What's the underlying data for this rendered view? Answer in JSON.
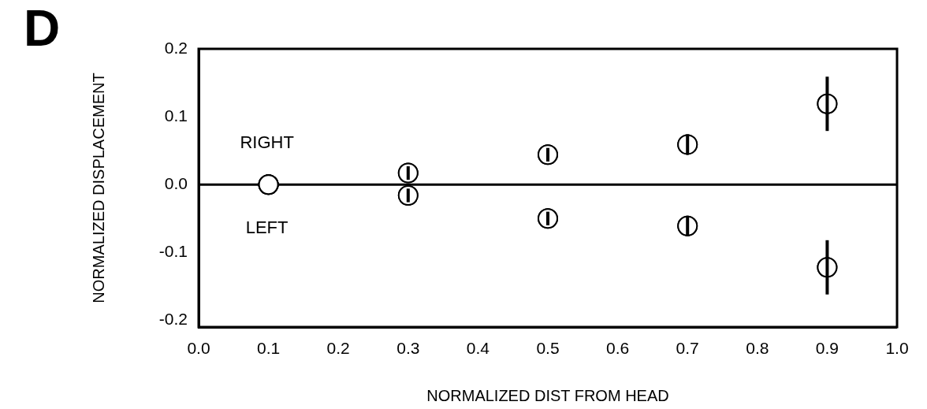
{
  "chart_data": {
    "type": "scatter",
    "title": "D",
    "xlabel": "NORMALIZED DIST FROM HEAD",
    "ylabel": "NORMALIZED DISPLACEMENT",
    "x": [
      0.1,
      0.3,
      0.5,
      0.7,
      0.9
    ],
    "series": [
      {
        "name": "RIGHT",
        "color": "#000000",
        "values": [
          0,
          0.017,
          0.044,
          0.059,
          0.119
        ],
        "errors": [
          null,
          0.01,
          0.01,
          0.015,
          0.04
        ]
      },
      {
        "name": "LEFT",
        "color": "#000000",
        "values": [
          0,
          -0.016,
          -0.05,
          -0.061,
          -0.122
        ],
        "errors": [
          null,
          0.01,
          0.01,
          0.015,
          0.04
        ]
      }
    ],
    "xlim": [
      0,
      1
    ],
    "xticks": [
      {
        "value": 0,
        "label": "0.0"
      },
      {
        "value": 0.1,
        "label": "0.1"
      },
      {
        "value": 0.2,
        "label": "0.2"
      },
      {
        "value": 0.3,
        "label": "0.3"
      },
      {
        "value": 0.4,
        "label": "0.4"
      },
      {
        "value": 0.5,
        "label": "0.5"
      },
      {
        "value": 0.6,
        "label": "0.6"
      },
      {
        "value": 0.7,
        "label": "0.7"
      },
      {
        "value": 0.8,
        "label": "0.8"
      },
      {
        "value": 0.9,
        "label": "0.9"
      },
      {
        "value": 1,
        "label": "1.0"
      }
    ],
    "ylim": [
      -0.21,
      0.2
    ],
    "yticks": [
      {
        "value": -0.2,
        "label": "-0.2"
      },
      {
        "value": -0.1,
        "label": "-0.1"
      },
      {
        "value": 0,
        "label": "0.0"
      },
      {
        "value": 0.1,
        "label": "0.1"
      },
      {
        "value": 0.2,
        "label": "0.2"
      }
    ],
    "ref_lines": [
      {
        "axis": "y",
        "value": 0,
        "color": "#000000"
      }
    ],
    "grid": false,
    "legend": false,
    "marker": "circle"
  }
}
